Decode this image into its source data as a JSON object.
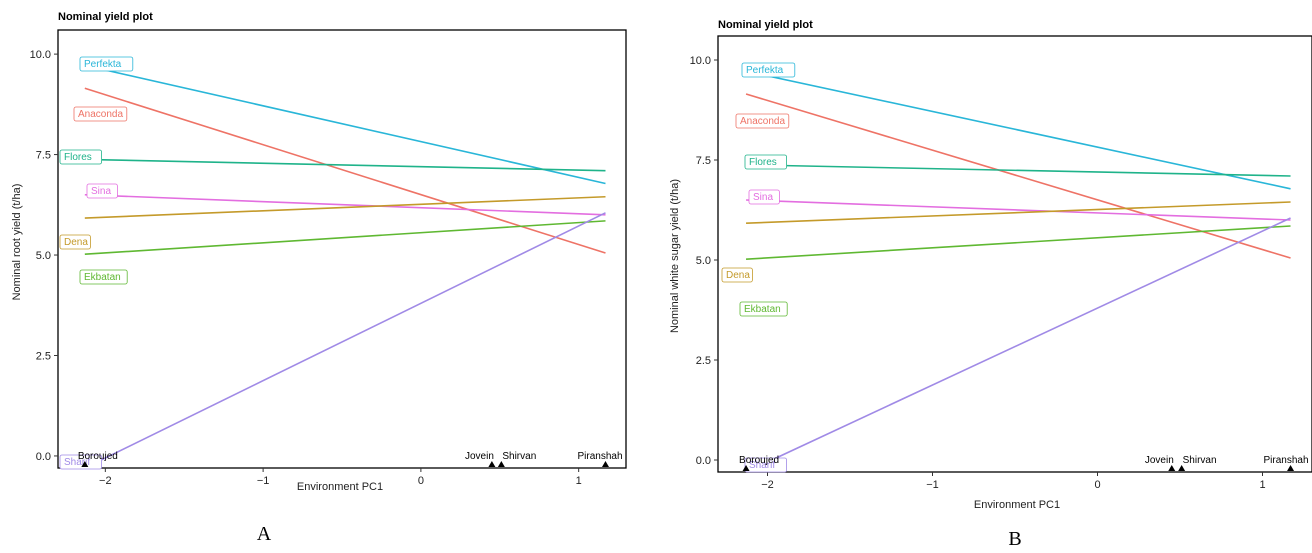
{
  "colors": {
    "Perfekta": "#29b6d8",
    "Anaconda": "#ee7366",
    "Flores": "#1fb38a",
    "Sina": "#e36ee0",
    "Dena": "#c49a2a",
    "Ekbatan": "#5fb832",
    "Sharif": "#a08ae6"
  },
  "chart_data": [
    {
      "type": "line",
      "panel_letter": "A",
      "title": "Nominal yield plot",
      "xlabel": "Environment PC1",
      "ylabel": "Nominal root yield (t/ha)",
      "xlim": [
        -2.3,
        1.3
      ],
      "ylim": [
        -0.3,
        10.6
      ],
      "xticks": [
        -2,
        -1,
        0,
        1
      ],
      "yticks": [
        0.0,
        2.5,
        5.0,
        7.5,
        10.0
      ],
      "xtick_labels": [
        "−2",
        "−1",
        "0",
        "1"
      ],
      "ytick_labels": [
        "0.0",
        "2.5",
        "5.0",
        "7.5",
        "10.0"
      ],
      "series": [
        {
          "name": "Perfekta",
          "x": [
            -2.13,
            1.17
          ],
          "y": [
            9.72,
            6.78
          ]
        },
        {
          "name": "Anaconda",
          "x": [
            -2.13,
            1.17
          ],
          "y": [
            9.15,
            5.05
          ]
        },
        {
          "name": "Flores",
          "x": [
            -2.13,
            1.17
          ],
          "y": [
            7.38,
            7.1
          ]
        },
        {
          "name": "Sina",
          "x": [
            -2.13,
            1.17
          ],
          "y": [
            6.5,
            6.0
          ]
        },
        {
          "name": "Dena",
          "x": [
            -2.13,
            1.17
          ],
          "y": [
            5.92,
            6.45
          ]
        },
        {
          "name": "Ekbatan",
          "x": [
            -2.13,
            1.17
          ],
          "y": [
            5.02,
            5.85
          ]
        },
        {
          "name": "Sharif",
          "x": [
            -2.13,
            1.17
          ],
          "y": [
            -0.3,
            6.05
          ]
        }
      ],
      "environments": [
        {
          "name": "Boroujed",
          "x": -2.13
        },
        {
          "name": "Jovein",
          "x": 0.45
        },
        {
          "name": "Shirvan",
          "x": 0.51
        },
        {
          "name": "Piranshah",
          "x": 1.17
        }
      ]
    },
    {
      "type": "line",
      "panel_letter": "B",
      "title": "Nominal yield plot",
      "xlabel": "Environment PC1",
      "ylabel": "Nominal white sugar  yield (t/ha)",
      "xlim": [
        -2.3,
        1.3
      ],
      "ylim": [
        -0.3,
        10.6
      ],
      "xticks": [
        -2,
        -1,
        0,
        1
      ],
      "yticks": [
        0.0,
        2.5,
        5.0,
        7.5,
        10.0
      ],
      "xtick_labels": [
        "−2",
        "−1",
        "0",
        "1"
      ],
      "ytick_labels": [
        "0.0",
        "2.5",
        "5.0",
        "7.5",
        "10.0"
      ],
      "series": [
        {
          "name": "Perfekta",
          "x": [
            -2.13,
            1.17
          ],
          "y": [
            9.72,
            6.78
          ]
        },
        {
          "name": "Anaconda",
          "x": [
            -2.13,
            1.17
          ],
          "y": [
            9.15,
            5.05
          ]
        },
        {
          "name": "Flores",
          "x": [
            -2.13,
            1.17
          ],
          "y": [
            7.38,
            7.1
          ]
        },
        {
          "name": "Sina",
          "x": [
            -2.13,
            1.17
          ],
          "y": [
            6.5,
            6.0
          ]
        },
        {
          "name": "Dena",
          "x": [
            -2.13,
            1.17
          ],
          "y": [
            5.92,
            6.45
          ]
        },
        {
          "name": "Ekbatan",
          "x": [
            -2.13,
            1.17
          ],
          "y": [
            5.02,
            5.85
          ]
        },
        {
          "name": "Sharif",
          "x": [
            -2.13,
            1.17
          ],
          "y": [
            -0.3,
            6.05
          ]
        }
      ],
      "environments": [
        {
          "name": "Boroujed",
          "x": -2.13
        },
        {
          "name": "Jovein",
          "x": 0.45
        },
        {
          "name": "Shirvan",
          "x": 0.51
        },
        {
          "name": "Piranshah",
          "x": 1.17
        }
      ]
    }
  ]
}
